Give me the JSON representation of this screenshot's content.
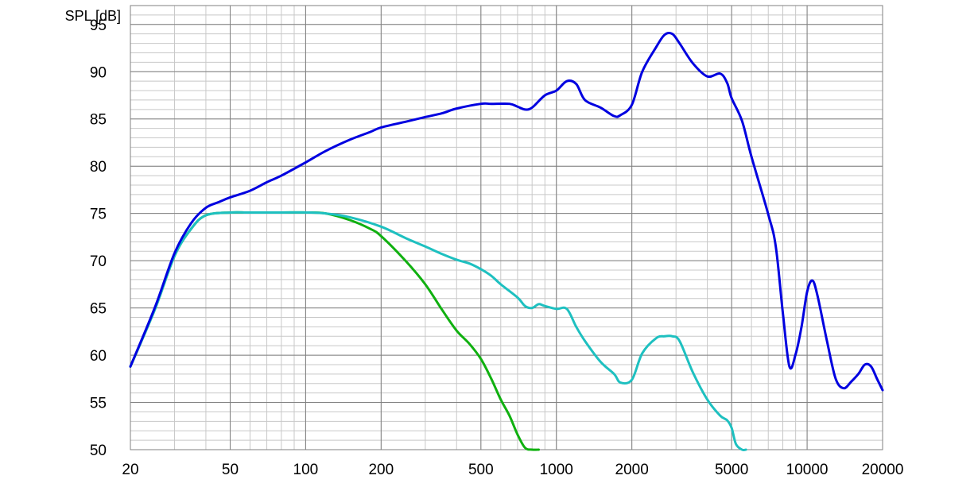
{
  "chart_data": {
    "type": "line",
    "ylabel": "SPL [dB]",
    "x_scale": "log",
    "xlim": [
      20,
      20000
    ],
    "ylim": [
      50,
      97
    ],
    "x_ticks": [
      20,
      50,
      100,
      200,
      500,
      1000,
      2000,
      5000,
      10000,
      20000
    ],
    "x_tick_labels": [
      "20",
      "50",
      "100",
      "200",
      "500",
      "1000",
      "2000",
      "5000",
      "10000",
      "20000"
    ],
    "y_ticks": [
      50,
      55,
      60,
      65,
      70,
      75,
      80,
      85,
      90,
      95
    ],
    "y_tick_labels": [
      "50",
      "55",
      "60",
      "65",
      "70",
      "75",
      "80",
      "85",
      "90",
      "95"
    ],
    "grid": true,
    "colors": {
      "blue": "#0000e0",
      "cyan": "#1ec0c0",
      "green": "#10b010",
      "grid_major": "#808080",
      "grid_minor": "#c8c8c8"
    },
    "series": [
      {
        "color": "#0000e0",
        "x": [
          20,
          25,
          30,
          35,
          40,
          45,
          50,
          60,
          70,
          80,
          100,
          120,
          150,
          180,
          200,
          250,
          300,
          350,
          400,
          500,
          550,
          650,
          700,
          750,
          800,
          900,
          1000,
          1100,
          1200,
          1300,
          1500,
          1700,
          1800,
          2000,
          2200,
          2500,
          2700,
          2900,
          3100,
          3500,
          4000,
          4500,
          4800,
          5000,
          5500,
          6000,
          7000,
          7500,
          8000,
          8500,
          9000,
          9500,
          10000,
          10500,
          11000,
          12000,
          13000,
          14000,
          15000,
          16000,
          17000,
          18000,
          19000,
          20000
        ],
        "y": [
          58.8,
          65,
          70.8,
          74,
          75.6,
          76.2,
          76.7,
          77.4,
          78.3,
          79,
          80.4,
          81.6,
          82.8,
          83.6,
          84.1,
          84.7,
          85.2,
          85.6,
          86.1,
          86.6,
          86.6,
          86.6,
          86.3,
          86,
          86.2,
          87.5,
          88,
          89,
          88.7,
          87,
          86.2,
          85.3,
          85.4,
          86.5,
          90,
          92.6,
          93.9,
          94,
          93,
          90.9,
          89.5,
          89.8,
          88.8,
          87.2,
          84.8,
          81,
          74.9,
          71.5,
          64.5,
          58.8,
          60.1,
          63,
          66.7,
          67.9,
          66.3,
          61.5,
          57.5,
          56.5,
          57.2,
          58,
          59,
          58.8,
          57.5,
          56.3
        ]
      },
      {
        "color": "#1ec0c0",
        "x": [
          20,
          25,
          30,
          35,
          40,
          50,
          60,
          80,
          100,
          120,
          150,
          200,
          250,
          300,
          350,
          400,
          450,
          500,
          550,
          600,
          700,
          750,
          800,
          850,
          900,
          1000,
          1100,
          1200,
          1300,
          1500,
          1700,
          1800,
          2000,
          2200,
          2500,
          2700,
          2900,
          3100,
          3500,
          4000,
          4500,
          4800,
          5000,
          5200,
          5500,
          5700
        ],
        "y": [
          58.8,
          64.8,
          70.5,
          73.4,
          74.8,
          75.1,
          75.1,
          75.1,
          75.1,
          75,
          74.6,
          73.6,
          72.4,
          71.5,
          70.7,
          70.1,
          69.7,
          69.1,
          68.4,
          67.5,
          66.1,
          65.2,
          65,
          65.4,
          65.2,
          64.9,
          64.9,
          63,
          61.5,
          59.3,
          58,
          57.1,
          57.4,
          60.2,
          61.8,
          62,
          62,
          61.5,
          58.2,
          55.3,
          53.6,
          53.1,
          52.3,
          50.6,
          50,
          50
        ]
      },
      {
        "color": "#10b010",
        "x": [
          20,
          25,
          30,
          35,
          40,
          50,
          60,
          80,
          100,
          120,
          150,
          180,
          200,
          250,
          300,
          350,
          400,
          450,
          500,
          550,
          600,
          650,
          700,
          750,
          800,
          850
        ],
        "y": [
          58.8,
          64.8,
          70.5,
          73.4,
          74.8,
          75.1,
          75.1,
          75.1,
          75.1,
          75,
          74.3,
          73.4,
          72.6,
          70,
          67.5,
          64.8,
          62.6,
          61.2,
          59.6,
          57.5,
          55.3,
          53.6,
          51.6,
          50.2,
          50,
          50
        ]
      }
    ]
  }
}
